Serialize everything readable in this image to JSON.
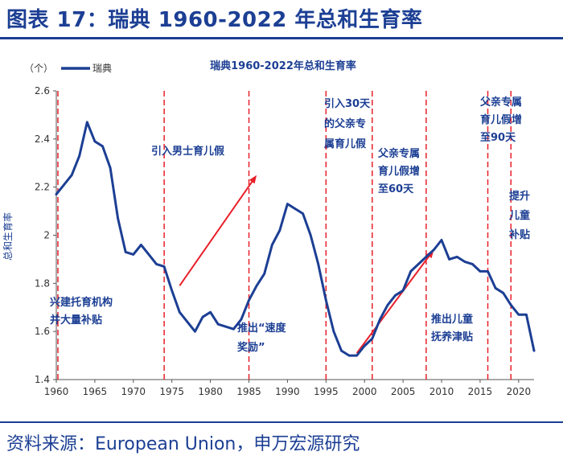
{
  "header": {
    "title": "图表 17：瑞典 1960-2022 年总和生育率"
  },
  "footer": {
    "source": "资料来源：European Union，申万宏源研究"
  },
  "colors": {
    "brand": "#1c3f94",
    "line": "#1c3f94",
    "event_line": "#e8202a",
    "arrow": "#e8202a",
    "axis": "#555555",
    "annotation": "#1c3f94"
  },
  "chart_data": {
    "type": "line",
    "title": "瑞典1960-2022年总和生育率",
    "unit_label": "（个）",
    "ylabel": "总和生育率",
    "xlabel": "",
    "xlim": [
      1960,
      2022
    ],
    "ylim": [
      1.4,
      2.6
    ],
    "x_ticks": [
      1960,
      1965,
      1970,
      1975,
      1980,
      1985,
      1990,
      1995,
      2000,
      2005,
      2010,
      2015,
      2020
    ],
    "y_ticks": [
      1.4,
      1.6,
      1.8,
      2,
      2.2,
      2.4,
      2.6
    ],
    "grid": false,
    "legend": {
      "position": "top-left",
      "entries": [
        "瑞典"
      ]
    },
    "series": [
      {
        "name": "瑞典",
        "x": [
          1960,
          1961,
          1962,
          1963,
          1964,
          1965,
          1966,
          1967,
          1968,
          1969,
          1970,
          1971,
          1972,
          1973,
          1974,
          1975,
          1976,
          1977,
          1978,
          1979,
          1980,
          1981,
          1982,
          1983,
          1984,
          1985,
          1986,
          1987,
          1988,
          1989,
          1990,
          1991,
          1992,
          1993,
          1994,
          1995,
          1996,
          1997,
          1998,
          1999,
          2000,
          2001,
          2002,
          2003,
          2004,
          2005,
          2006,
          2007,
          2008,
          2009,
          2010,
          2011,
          2012,
          2013,
          2014,
          2015,
          2016,
          2017,
          2018,
          2019,
          2020,
          2021,
          2022
        ],
        "values": [
          2.17,
          2.21,
          2.25,
          2.33,
          2.47,
          2.39,
          2.37,
          2.28,
          2.07,
          1.93,
          1.92,
          1.96,
          1.92,
          1.88,
          1.87,
          1.77,
          1.68,
          1.64,
          1.6,
          1.66,
          1.68,
          1.63,
          1.62,
          1.61,
          1.65,
          1.73,
          1.79,
          1.84,
          1.96,
          2.02,
          2.13,
          2.11,
          2.09,
          2.0,
          1.88,
          1.73,
          1.6,
          1.52,
          1.5,
          1.5,
          1.54,
          1.57,
          1.65,
          1.71,
          1.75,
          1.77,
          1.85,
          1.88,
          1.91,
          1.94,
          1.98,
          1.9,
          1.91,
          1.89,
          1.88,
          1.85,
          1.85,
          1.78,
          1.76,
          1.71,
          1.67,
          1.67,
          1.52
        ]
      }
    ],
    "event_lines": [
      1960,
      1974,
      1985,
      1995,
      2001,
      2008,
      2016,
      2019
    ],
    "annotations": [
      {
        "id": "a1960",
        "lines": [
          "兴建托育机构",
          "并大量补贴"
        ]
      },
      {
        "id": "a1974",
        "lines": [
          "引入男士育儿假"
        ]
      },
      {
        "id": "a1985",
        "lines": [
          "推出“速度",
          "奖励”"
        ]
      },
      {
        "id": "a1995",
        "lines": [
          "引入30天",
          "的父亲专",
          "属育儿假"
        ]
      },
      {
        "id": "a2001",
        "lines": [
          "父亲专属",
          "育儿假增",
          "至60天"
        ]
      },
      {
        "id": "a2008",
        "lines": [
          "推出儿童",
          "抚养津贴"
        ]
      },
      {
        "id": "a2016",
        "lines": [
          "父亲专属",
          "育儿假增",
          "至90天"
        ]
      },
      {
        "id": "a2019",
        "lines": [
          "提升",
          "儿童",
          "补贴"
        ]
      }
    ],
    "arrows": [
      {
        "from": [
          1976,
          1.79
        ],
        "to": [
          1986,
          2.25
        ]
      },
      {
        "from": [
          1999,
          1.51
        ],
        "to": [
          2009,
          1.94
        ]
      }
    ]
  }
}
